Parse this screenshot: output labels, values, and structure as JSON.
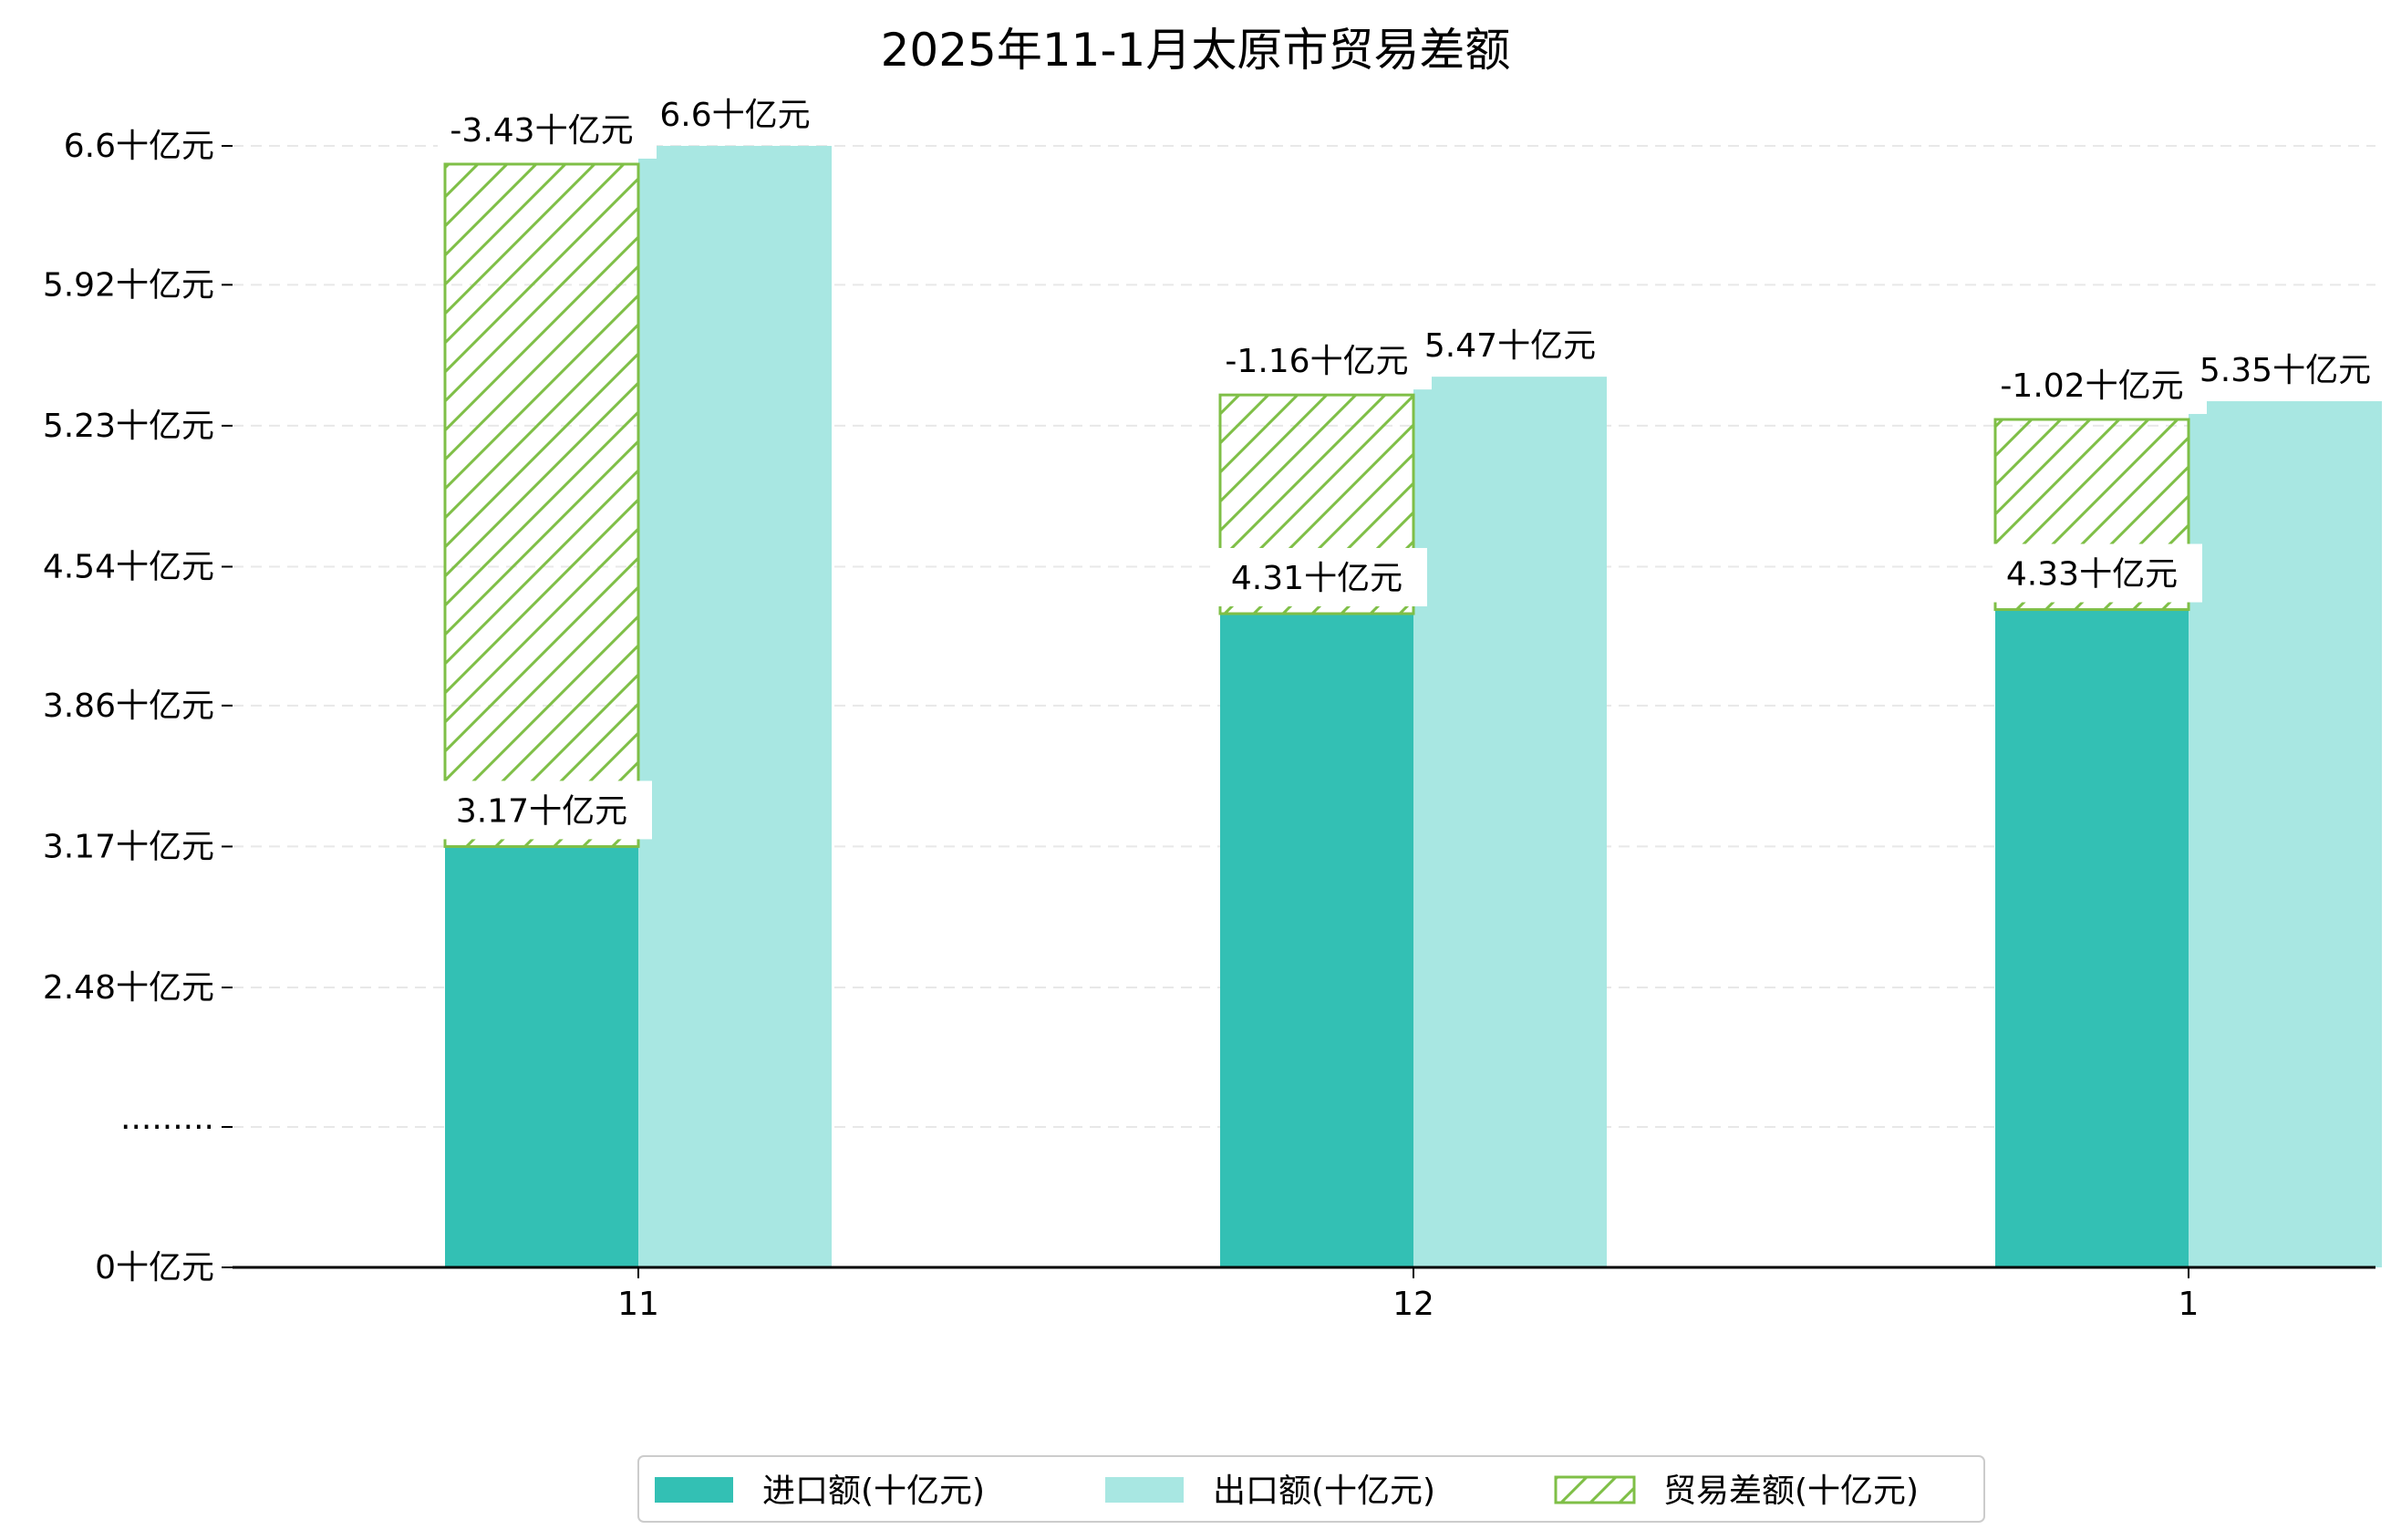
{
  "chart_data": {
    "type": "bar",
    "title": "2025年11-1月太原市贸易差额",
    "xlabel": "",
    "ylabel": "",
    "categories": [
      "11",
      "12",
      "1"
    ],
    "series": [
      {
        "name": "进口额(十亿元)",
        "values": [
          3.17,
          4.31,
          4.33
        ],
        "color": "#33c0b4",
        "labels": [
          "3.17十亿元",
          "4.31十亿元",
          "4.33十亿元"
        ]
      },
      {
        "name": "出口额(十亿元)",
        "values": [
          6.6,
          5.47,
          5.35
        ],
        "color": "#a8e7e2",
        "labels": [
          "6.6十亿元",
          "5.47十亿元",
          "5.35十亿元"
        ]
      },
      {
        "name": "贸易差额(十亿元)",
        "values": [
          -3.43,
          -1.16,
          -1.02
        ],
        "color": "#7fbf47",
        "labels": [
          "-3.43十亿元",
          "-1.16十亿元",
          "-1.02十亿元"
        ]
      }
    ],
    "y_axis": {
      "tick_labels": [
        "0十亿元",
        "·········",
        "2.48十亿元",
        "3.17十亿元",
        "3.86十亿元",
        "4.54十亿元",
        "5.23十亿元",
        "5.92十亿元",
        "6.6十亿元"
      ],
      "tick_values": [
        null,
        null,
        2.48,
        3.17,
        3.86,
        4.54,
        5.23,
        5.92,
        6.6
      ],
      "broken_axis": true
    },
    "grid": "horizontal-dashed",
    "legend_position": "bottom-center"
  }
}
